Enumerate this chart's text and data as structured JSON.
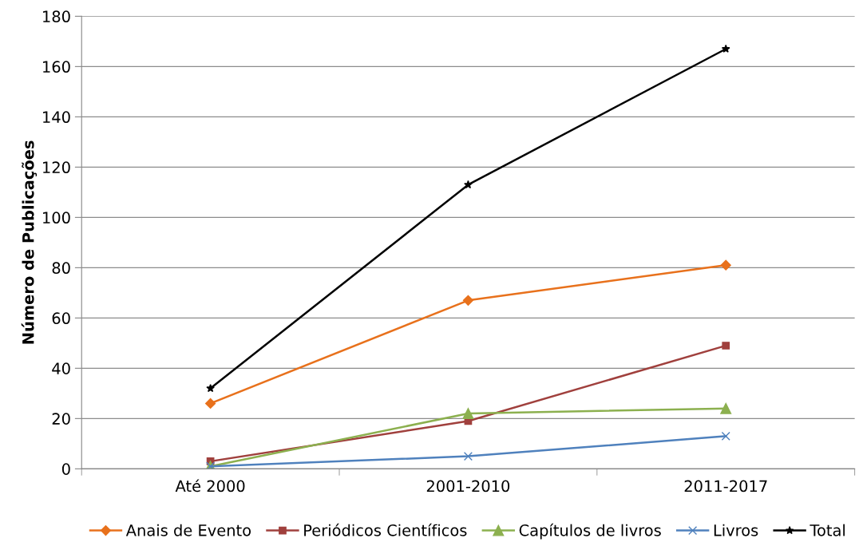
{
  "chart_data": {
    "type": "line",
    "ylabel": "Número de Publicações",
    "categories": [
      "Até 2000",
      "2001-2010",
      "2011-2017"
    ],
    "series": [
      {
        "name": "Anais de Evento",
        "color": "#e8711c",
        "marker": "diamond",
        "values": [
          26,
          67,
          81
        ]
      },
      {
        "name": "Periódicos Científicos",
        "color": "#a0403d",
        "marker": "square",
        "values": [
          3,
          19,
          49
        ]
      },
      {
        "name": "Capítulos de livros",
        "color": "#8cb04f",
        "marker": "triangle",
        "values": [
          1,
          22,
          24
        ]
      },
      {
        "name": "Livros",
        "color": "#4f81bd",
        "marker": "cross",
        "values": [
          1,
          5,
          13
        ]
      },
      {
        "name": "Total",
        "color": "#000000",
        "marker": "star",
        "values": [
          32,
          113,
          167
        ]
      }
    ],
    "ylim": [
      0,
      180
    ],
    "yticks": [
      0,
      20,
      40,
      60,
      80,
      100,
      120,
      140,
      160,
      180
    ],
    "grid": "y",
    "legend": "bottom",
    "line_style": "solid"
  }
}
